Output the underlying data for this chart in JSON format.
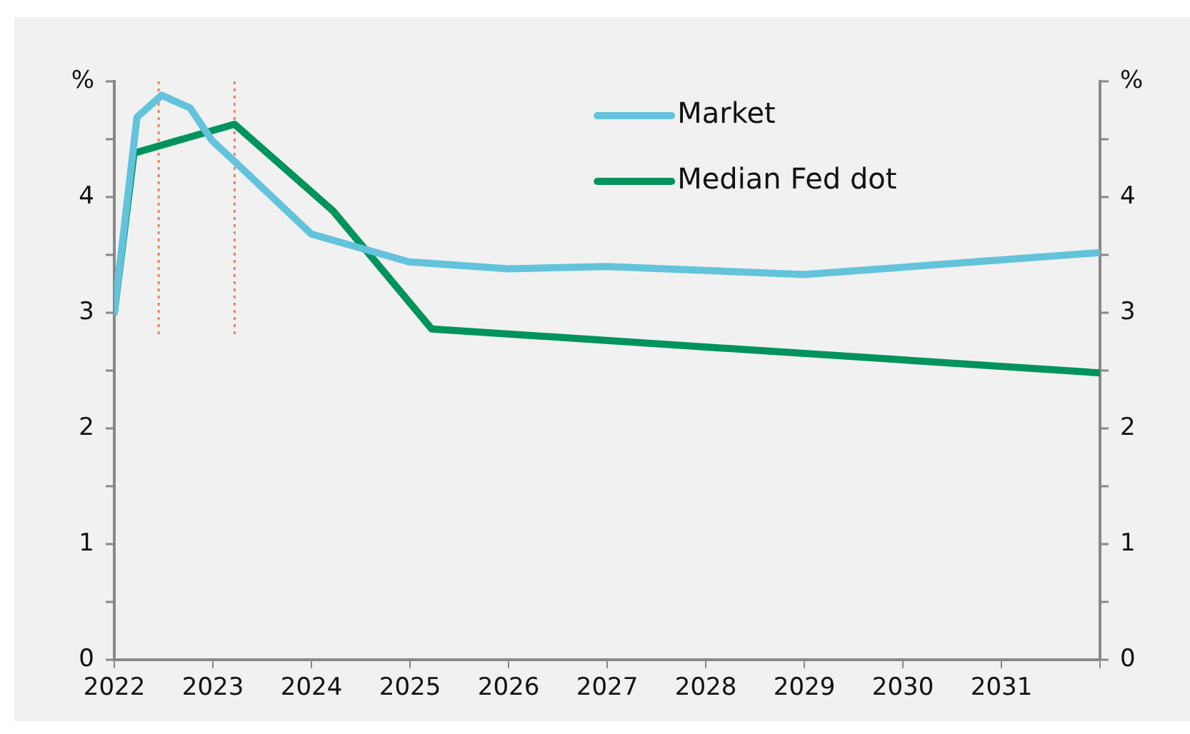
{
  "chart_data": {
    "type": "line",
    "x": [
      2022,
      2022.23,
      2022.48,
      2022.77,
      2022.99,
      2023.23,
      2024,
      2024.99,
      2026,
      2027,
      2029,
      2032
    ],
    "series": [
      {
        "name": "Market",
        "color": "#62c3da",
        "values": [
          3.0,
          4.69,
          4.88,
          4.77,
          4.49,
          4.3,
          3.68,
          3.44,
          3.38,
          3.4,
          3.33,
          3.52
        ]
      },
      {
        "name": "Median Fed dot",
        "color": "#00935c",
        "x": [
          2022,
          2022.2,
          2023.22,
          2024.22,
          2025.22,
          2032
        ],
        "values": [
          3.0,
          4.38,
          4.63,
          3.88,
          2.86,
          2.48
        ]
      }
    ],
    "xlim": [
      2022,
      2032
    ],
    "xticks": [
      2022,
      2023,
      2024,
      2025,
      2026,
      2027,
      2028,
      2029,
      2030,
      2031,
      {
        "value": 2032,
        "label": null
      }
    ],
    "ylim": [
      0,
      5
    ],
    "yticks": [
      0,
      {
        "value": 0.5,
        "label": null
      },
      1,
      {
        "value": 1.5,
        "label": null
      },
      2,
      {
        "value": 2.5,
        "label": null
      },
      3,
      {
        "value": 3.5,
        "label": null
      },
      4,
      {
        "value": 4.5,
        "label": null
      },
      {
        "value": 5,
        "label": "%"
      }
    ],
    "y2lim": [
      0,
      5
    ],
    "y2ticks": [
      0,
      {
        "value": 0.5,
        "label": null
      },
      1,
      {
        "value": 1.5,
        "label": null
      },
      2,
      {
        "value": 2.5,
        "label": null
      },
      3,
      {
        "value": 3.5,
        "label": null
      },
      4,
      {
        "value": 4.5,
        "label": null
      },
      {
        "value": 5,
        "label": "%"
      }
    ],
    "ref_lines": [
      {
        "axis": "x",
        "value": 2022.45,
        "color": "#f07f4f",
        "line_style": "dotted"
      },
      {
        "axis": "x",
        "value": 2023.22,
        "color": "#f07f4f",
        "line_style": "dotted"
      }
    ],
    "legend": "top",
    "grid": false,
    "marker": "none",
    "line_style": "solid"
  }
}
